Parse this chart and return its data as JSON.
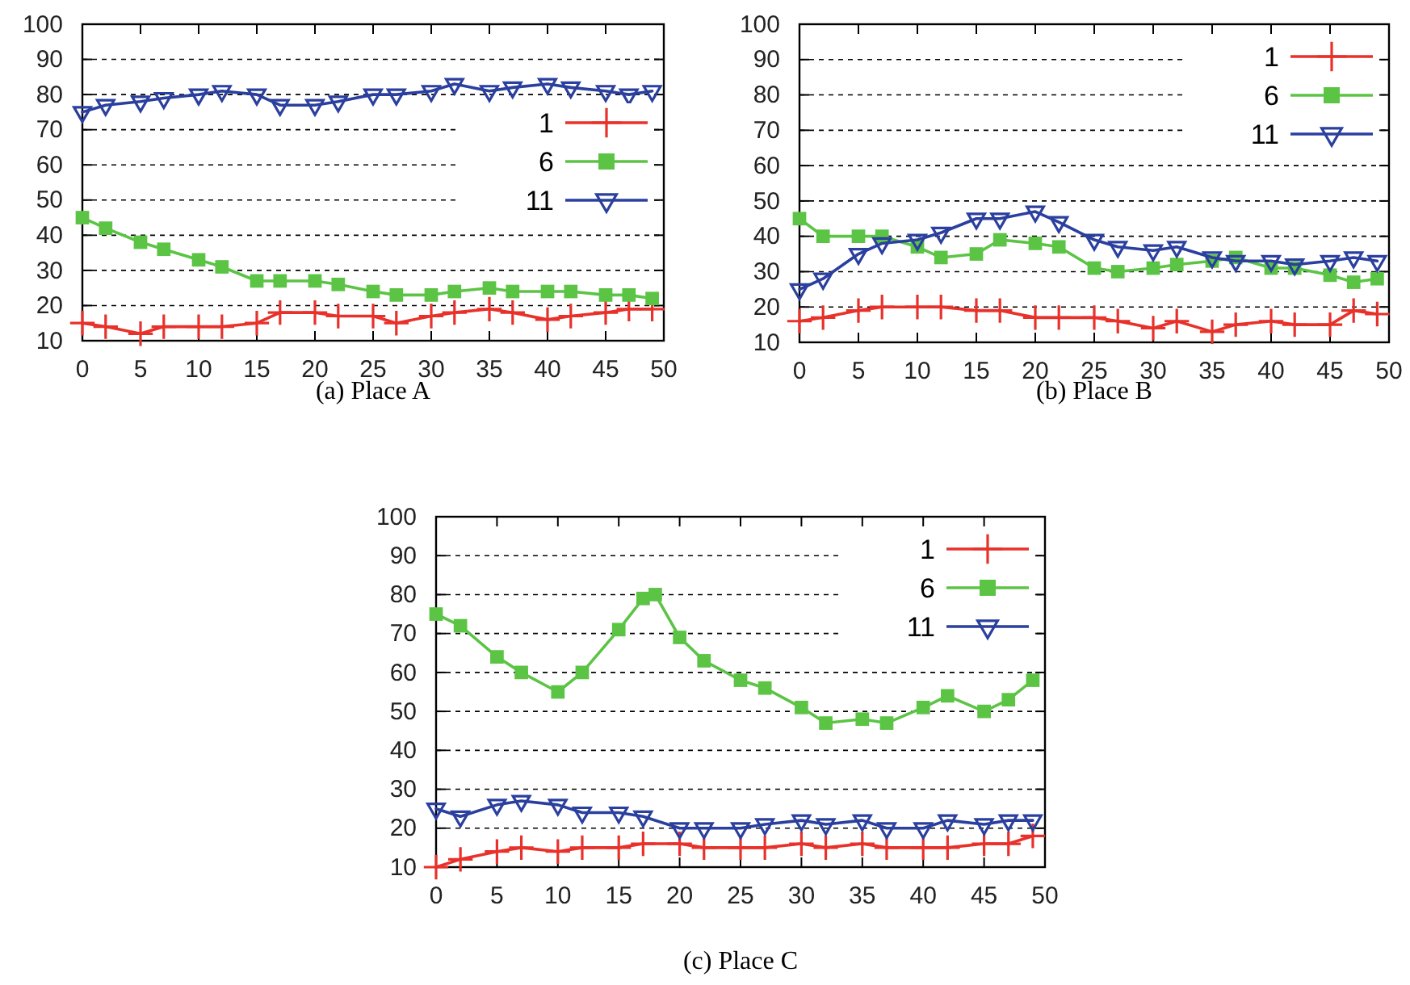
{
  "chart_data": [
    {
      "type": "line",
      "title": "(a) Place A",
      "x": [
        0,
        2,
        5,
        7,
        10,
        12,
        15,
        17,
        20,
        22,
        25,
        27,
        30,
        32,
        35,
        37,
        40,
        42,
        45,
        47,
        49
      ],
      "xlim": [
        0,
        50
      ],
      "xticks": [
        0,
        5,
        10,
        15,
        20,
        25,
        30,
        35,
        40,
        45,
        50
      ],
      "ylim": [
        10,
        100
      ],
      "yticks": [
        10,
        20,
        30,
        40,
        50,
        60,
        70,
        80,
        90,
        100
      ],
      "grid": "y",
      "legend": "right",
      "series": [
        {
          "name": "1",
          "color": "#e8312a",
          "marker": "cross",
          "values": [
            15,
            14,
            12,
            14,
            14,
            14,
            15,
            18,
            18,
            17,
            17,
            15,
            17,
            18,
            19,
            18,
            16,
            17,
            18,
            19,
            19
          ]
        },
        {
          "name": "6",
          "color": "#5cc445",
          "marker": "square",
          "values": [
            45,
            42,
            38,
            36,
            33,
            31,
            27,
            27,
            27,
            26,
            24,
            23,
            23,
            24,
            25,
            24,
            24,
            24,
            23,
            23,
            22
          ]
        },
        {
          "name": "11",
          "color": "#2a3f9e",
          "marker": "triangle",
          "values": [
            75,
            77,
            78,
            79,
            80,
            81,
            80,
            77,
            77,
            78,
            80,
            80,
            81,
            83,
            81,
            82,
            83,
            82,
            81,
            80,
            81
          ]
        }
      ]
    },
    {
      "type": "line",
      "title": "(b) Place B",
      "x": [
        0,
        2,
        5,
        7,
        10,
        12,
        15,
        17,
        20,
        22,
        25,
        27,
        30,
        32,
        35,
        37,
        40,
        42,
        45,
        47,
        49
      ],
      "xlim": [
        0,
        50
      ],
      "xticks": [
        0,
        5,
        10,
        15,
        20,
        25,
        30,
        35,
        40,
        45,
        50
      ],
      "ylim": [
        10,
        100
      ],
      "yticks": [
        10,
        20,
        30,
        40,
        50,
        60,
        70,
        80,
        90,
        100
      ],
      "grid": "y",
      "legend": "top right",
      "series": [
        {
          "name": "1",
          "color": "#e8312a",
          "marker": "cross",
          "values": [
            16,
            17,
            19,
            20,
            20,
            20,
            19,
            19,
            17,
            17,
            17,
            16,
            14,
            16,
            13,
            15,
            16,
            15,
            15,
            19,
            18
          ]
        },
        {
          "name": "6",
          "color": "#5cc445",
          "marker": "square",
          "values": [
            45,
            40,
            40,
            40,
            37,
            34,
            35,
            39,
            38,
            37,
            31,
            30,
            31,
            32,
            33,
            34,
            31,
            31,
            29,
            27,
            28
          ]
        },
        {
          "name": "11",
          "color": "#2a3f9e",
          "marker": "triangle",
          "values": [
            25,
            28,
            35,
            38,
            39,
            41,
            45,
            45,
            47,
            44,
            39,
            37,
            36,
            37,
            34,
            33,
            33,
            32,
            33,
            34,
            33
          ]
        }
      ]
    },
    {
      "type": "line",
      "title": "(c) Place C",
      "x": [
        0,
        2,
        5,
        7,
        10,
        12,
        15,
        17,
        20,
        22,
        25,
        27,
        30,
        32,
        35,
        37,
        40,
        42,
        45,
        47,
        49
      ],
      "xlim": [
        0,
        50
      ],
      "xticks": [
        0,
        5,
        10,
        15,
        20,
        25,
        30,
        35,
        40,
        45,
        50
      ],
      "ylim": [
        10,
        100
      ],
      "yticks": [
        10,
        20,
        30,
        40,
        50,
        60,
        70,
        80,
        90,
        100
      ],
      "grid": "y",
      "legend": "top right",
      "series": [
        {
          "name": "1",
          "color": "#e8312a",
          "marker": "cross",
          "values": [
            10,
            12,
            14,
            15,
            14,
            15,
            15,
            16,
            16,
            15,
            15,
            15,
            16,
            15,
            16,
            15,
            15,
            15,
            16,
            16,
            18
          ]
        },
        {
          "name": "6",
          "color": "#5cc445",
          "marker": "square",
          "x": [
            0,
            2,
            5,
            7,
            10,
            12,
            15,
            17,
            18,
            20,
            22,
            25,
            27,
            30,
            32,
            35,
            37,
            40,
            42,
            45,
            47,
            49
          ],
          "values": [
            75,
            72,
            64,
            60,
            55,
            60,
            71,
            79,
            80,
            69,
            63,
            58,
            56,
            51,
            47,
            48,
            47,
            51,
            54,
            50,
            53,
            58
          ]
        },
        {
          "name": "11",
          "color": "#2a3f9e",
          "marker": "triangle",
          "values": [
            25,
            23,
            26,
            27,
            26,
            24,
            24,
            23,
            20,
            20,
            20,
            21,
            22,
            21,
            22,
            20,
            20,
            22,
            21,
            22,
            22
          ]
        }
      ]
    }
  ]
}
